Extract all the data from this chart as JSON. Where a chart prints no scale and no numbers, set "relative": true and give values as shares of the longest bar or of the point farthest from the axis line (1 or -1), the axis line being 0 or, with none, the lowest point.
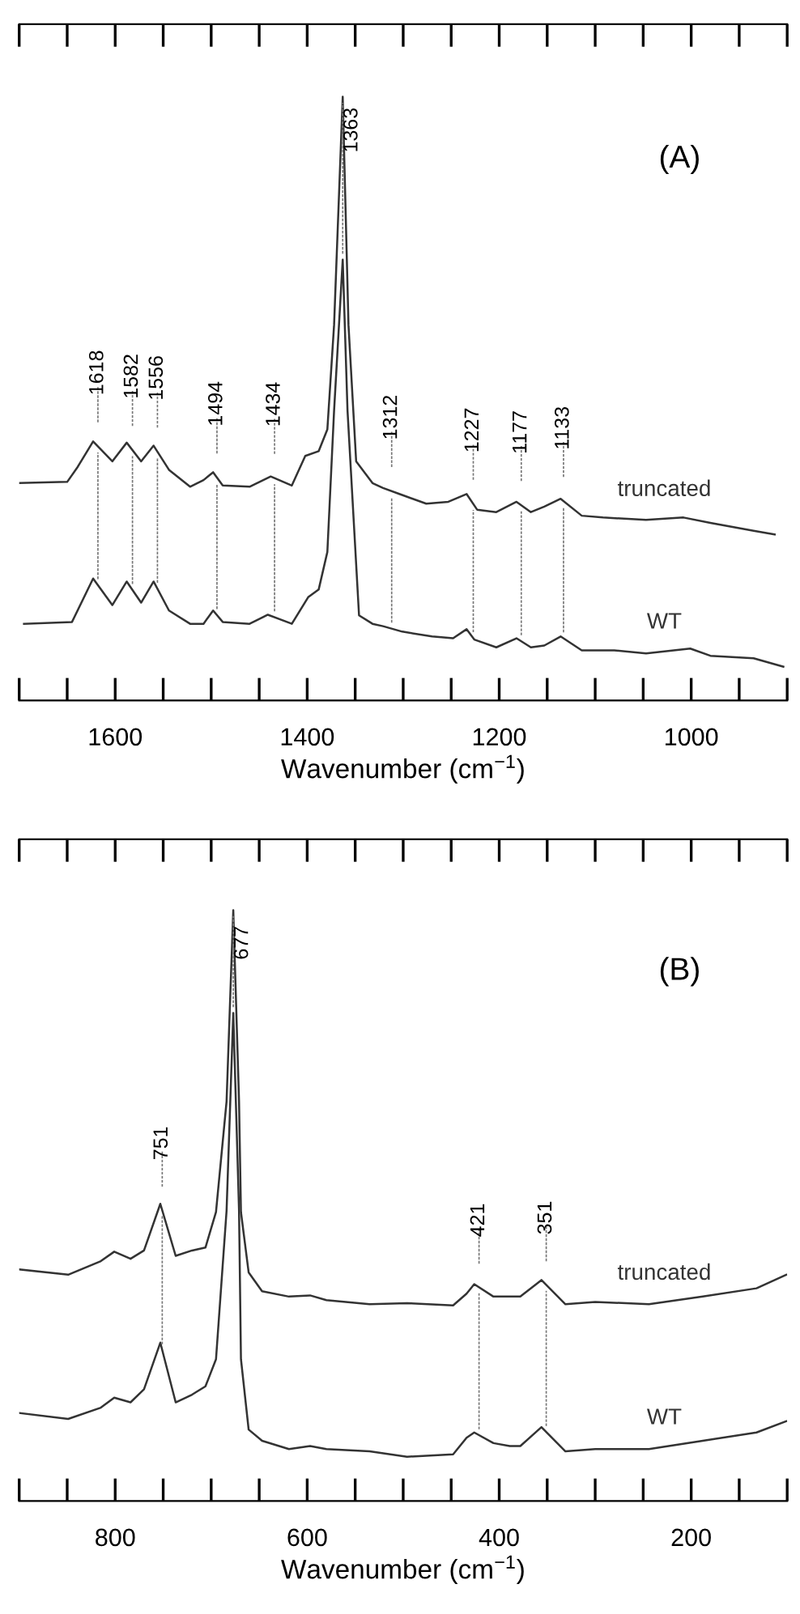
{
  "chart_data": [
    {
      "type": "line",
      "title": "(A)",
      "xlabel": "Wavenumber (cm$^{−1}$)",
      "relative": true,
      "legend": false,
      "grid": false,
      "marker": "none",
      "line_style": "solid",
      "xlim": [
        1700,
        900
      ],
      "xticks": [
        1600,
        1400,
        1200,
        1000
      ],
      "series": [
        {
          "name": "truncated",
          "color": "#333333",
          "x": [
            1700,
            1650,
            1639,
            1623,
            1603,
            1588,
            1573,
            1560,
            1544,
            1522,
            1508,
            1498,
            1488,
            1460,
            1438,
            1416,
            1402,
            1388,
            1379,
            1372,
            1363,
            1357,
            1349,
            1332,
            1321,
            1304,
            1276,
            1253,
            1234,
            1223,
            1203,
            1182,
            1167,
            1153,
            1136,
            1114,
            1092,
            1047,
            1008,
            980,
            935,
            913
          ],
          "values": [
            0.36,
            0.362,
            0.387,
            0.429,
            0.396,
            0.427,
            0.396,
            0.422,
            0.382,
            0.354,
            0.365,
            0.378,
            0.356,
            0.354,
            0.371,
            0.356,
            0.405,
            0.413,
            0.449,
            0.622,
            1.0,
            0.622,
            0.396,
            0.36,
            0.352,
            0.342,
            0.326,
            0.329,
            0.342,
            0.316,
            0.312,
            0.329,
            0.312,
            0.321,
            0.334,
            0.306,
            0.303,
            0.299,
            0.303,
            0.294,
            0.281,
            0.275
          ]
        },
        {
          "name": "WT",
          "color": "#333333",
          "x": [
            1695,
            1645,
            1623,
            1603,
            1588,
            1573,
            1560,
            1544,
            1522,
            1508,
            1498,
            1488,
            1460,
            1441,
            1416,
            1399,
            1388,
            1379,
            1372,
            1363,
            1358,
            1346,
            1332,
            1321,
            1301,
            1270,
            1248,
            1234,
            1226,
            1203,
            1182,
            1167,
            1153,
            1136,
            1114,
            1080,
            1047,
            1001,
            980,
            935,
            904
          ],
          "values": [
            0.127,
            0.13,
            0.202,
            0.158,
            0.197,
            0.162,
            0.197,
            0.149,
            0.127,
            0.127,
            0.149,
            0.13,
            0.127,
            0.142,
            0.127,
            0.171,
            0.184,
            0.246,
            0.48,
            0.73,
            0.48,
            0.141,
            0.127,
            0.123,
            0.114,
            0.106,
            0.103,
            0.118,
            0.101,
            0.088,
            0.103,
            0.088,
            0.091,
            0.106,
            0.083,
            0.083,
            0.078,
            0.086,
            0.074,
            0.07,
            0.056
          ]
        }
      ],
      "ref_lines": [
        {
          "axis": "x",
          "value": 1618,
          "label": "1618",
          "line_style": "dashed",
          "color": "#777777"
        },
        {
          "axis": "x",
          "value": 1582,
          "label": "1582",
          "line_style": "dashed",
          "color": "#777777"
        },
        {
          "axis": "x",
          "value": 1556,
          "label": "1556",
          "line_style": "dashed",
          "color": "#777777"
        },
        {
          "axis": "x",
          "value": 1494,
          "label": "1494",
          "line_style": "dashed",
          "color": "#777777"
        },
        {
          "axis": "x",
          "value": 1434,
          "label": "1434",
          "line_style": "dashed",
          "color": "#777777"
        },
        {
          "axis": "x",
          "value": 1363,
          "label": "1363",
          "line_style": "dashed",
          "color": "#777777"
        },
        {
          "axis": "x",
          "value": 1312,
          "label": "1312",
          "line_style": "dashed",
          "color": "#777777"
        },
        {
          "axis": "x",
          "value": 1227,
          "label": "1227",
          "line_style": "dashed",
          "color": "#777777"
        },
        {
          "axis": "x",
          "value": 1177,
          "label": "1177",
          "line_style": "dashed",
          "color": "#777777"
        },
        {
          "axis": "x",
          "value": 1133,
          "label": "1133",
          "line_style": "dashed",
          "color": "#777777"
        }
      ]
    },
    {
      "type": "line",
      "title": "(B)",
      "xlabel": "Wavenumber (cm$^{−1}$)",
      "relative": true,
      "legend": false,
      "grid": false,
      "marker": "none",
      "line_style": "solid",
      "xlim": [
        900,
        100
      ],
      "xticks": [
        800,
        600,
        400,
        200
      ],
      "series": [
        {
          "name": "truncated",
          "color": "#333333",
          "x": [
            900,
            849,
            815,
            801,
            784,
            770,
            753,
            737,
            720,
            706,
            695,
            684,
            677,
            671,
            669,
            661,
            647,
            619,
            597,
            580,
            535,
            496,
            448,
            434,
            426,
            406,
            378,
            356,
            331,
            300,
            244,
            188,
            132,
            101
          ],
          "values": [
            0.392,
            0.383,
            0.406,
            0.422,
            0.41,
            0.424,
            0.503,
            0.415,
            0.424,
            0.429,
            0.489,
            0.676,
            1.0,
            0.676,
            0.489,
            0.387,
            0.355,
            0.346,
            0.348,
            0.34,
            0.333,
            0.335,
            0.331,
            0.351,
            0.367,
            0.346,
            0.346,
            0.374,
            0.333,
            0.337,
            0.333,
            0.346,
            0.36,
            0.383
          ]
        },
        {
          "name": "WT",
          "color": "#333333",
          "x": [
            900,
            849,
            815,
            801,
            784,
            770,
            753,
            737,
            720,
            706,
            695,
            684,
            677,
            671,
            669,
            661,
            647,
            619,
            597,
            580,
            535,
            496,
            448,
            434,
            426,
            406,
            389,
            378,
            356,
            331,
            300,
            244,
            188,
            132,
            101
          ],
          "values": [
            0.149,
            0.139,
            0.158,
            0.175,
            0.167,
            0.189,
            0.268,
            0.167,
            0.18,
            0.194,
            0.24,
            0.491,
            0.826,
            0.491,
            0.24,
            0.121,
            0.102,
            0.088,
            0.093,
            0.088,
            0.084,
            0.075,
            0.079,
            0.107,
            0.116,
            0.098,
            0.093,
            0.093,
            0.125,
            0.084,
            0.088,
            0.088,
            0.102,
            0.116,
            0.135
          ]
        }
      ],
      "ref_lines": [
        {
          "axis": "x",
          "value": 751,
          "label": "751",
          "line_style": "dashed",
          "color": "#777777"
        },
        {
          "axis": "x",
          "value": 677,
          "label": "677",
          "line_style": "dashed",
          "color": "#777777"
        },
        {
          "axis": "x",
          "value": 421,
          "label": "421",
          "line_style": "dashed",
          "color": "#777777"
        },
        {
          "axis": "x",
          "value": 351,
          "label": "351",
          "line_style": "dashed",
          "color": "#777777"
        }
      ]
    }
  ]
}
